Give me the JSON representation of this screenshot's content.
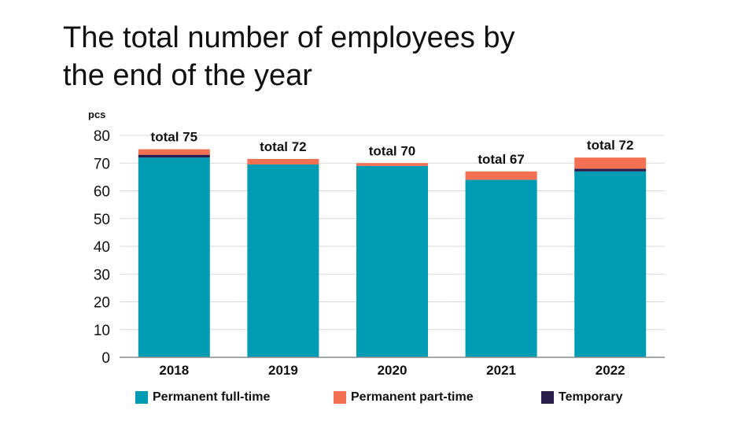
{
  "title_lines": [
    "The total number of employees by",
    "the end of the year"
  ],
  "chart_data": {
    "type": "bar",
    "stacked": true,
    "title": "The total number of employees by the end of the year",
    "ylabel": "pcs",
    "xlabel": "",
    "ylim": [
      0,
      80
    ],
    "yticks": [
      0,
      10,
      20,
      30,
      40,
      50,
      60,
      70,
      80
    ],
    "grid": true,
    "legend_position": "bottom",
    "categories": [
      "2018",
      "2019",
      "2020",
      "2021",
      "2022"
    ],
    "series": [
      {
        "name": "Permanent full-time",
        "color": "#009CB4",
        "values": [
          72,
          69.5,
          69,
          64,
          67
        ]
      },
      {
        "name": "Temporary",
        "color": "#2A1E4C",
        "values": [
          1,
          0,
          0,
          0,
          1
        ]
      },
      {
        "name": "Permanent part-time",
        "color": "#F47052",
        "values": [
          2,
          2,
          1,
          3,
          4
        ]
      }
    ],
    "totals": [
      "total 75",
      "total 72",
      "total  70",
      "total  67",
      "total  72"
    ]
  },
  "legend": [
    {
      "label": "Permanent full-time",
      "color": "#009CB4"
    },
    {
      "label": "Permanent part-time",
      "color": "#F47052"
    },
    {
      "label": "Temporary",
      "color": "#2A1E4C"
    }
  ]
}
